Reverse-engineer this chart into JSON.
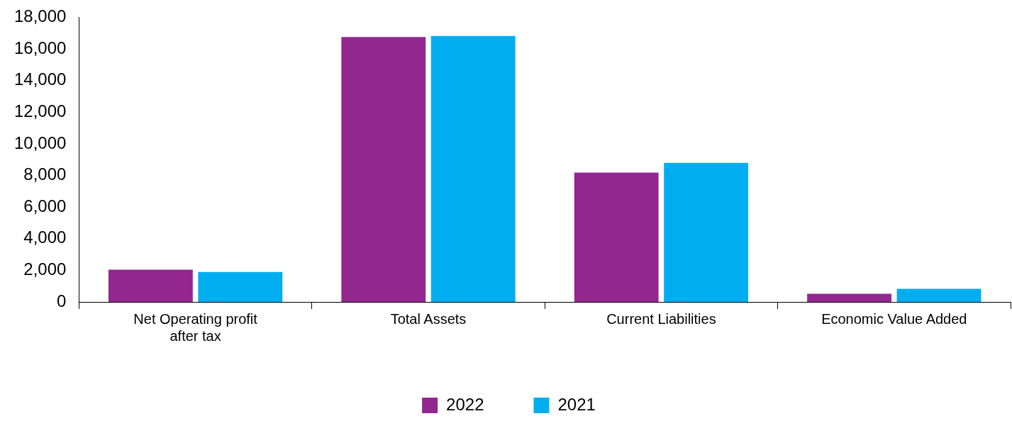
{
  "chart_data": {
    "type": "bar",
    "categories": [
      "Net Operating profit after tax",
      "Total Assets",
      "Current Liabilities",
      "Economic Value Added"
    ],
    "series": [
      {
        "name": "2022",
        "color": "#92278f",
        "values": [
          2040,
          16750,
          8180,
          510
        ]
      },
      {
        "name": "2021",
        "color": "#00aeef",
        "values": [
          1890,
          16820,
          8800,
          825
        ]
      }
    ],
    "ylim": [
      0,
      18000
    ],
    "yticks": [
      {
        "value": 0,
        "label": "0"
      },
      {
        "value": 2000,
        "label": "2,000"
      },
      {
        "value": 4000,
        "label": "4,000"
      },
      {
        "value": 6000,
        "label": "6,000"
      },
      {
        "value": 8000,
        "label": "8,000"
      },
      {
        "value": 10000,
        "label": "10,000"
      },
      {
        "value": 12000,
        "label": "12,000"
      },
      {
        "value": 14000,
        "label": "14,000"
      },
      {
        "value": 16000,
        "label": "16,000"
      },
      {
        "value": 18000,
        "label": "18,000"
      }
    ],
    "legend": "bottom"
  }
}
